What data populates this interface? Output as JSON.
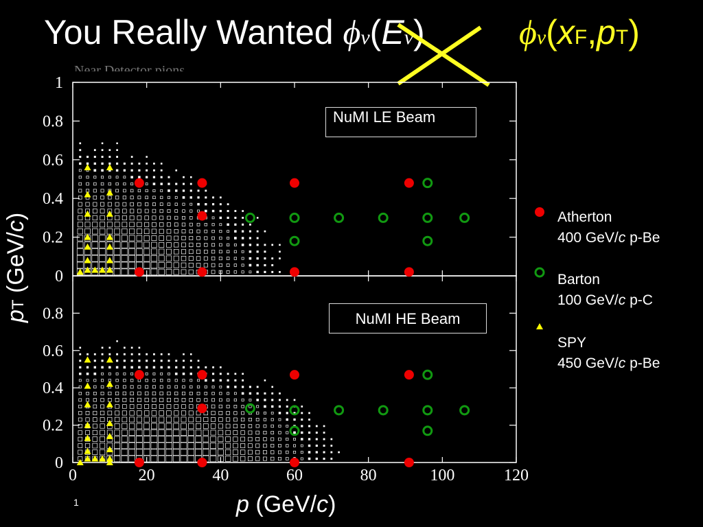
{
  "slide": {
    "title_text": "You Really Wanted ",
    "title_phi": "ϕ",
    "title_nu": "ν",
    "title_open": "(",
    "title_E": "E",
    "title_close": ")",
    "alt_phi": "ϕ",
    "alt_nu": "ν",
    "alt_open": "(",
    "alt_x": "x",
    "alt_F": "F",
    "alt_comma": ",",
    "alt_p": "p",
    "alt_T": "T",
    "alt_close": ")",
    "faint_header": "Near Detector   pions",
    "slide_number": "1",
    "colors": {
      "title": "#ffffff",
      "accent": "#ffff22",
      "atherton": "#ee0000",
      "barton": "#119911",
      "spy": "#ffff00"
    }
  },
  "axes": {
    "ylabel_p": "p",
    "ylabel_T": "T",
    "ylabel_rest": " (GeV/",
    "ylabel_c": "c",
    "ylabel_end": ")",
    "xlabel_p": "p",
    "xlabel_rest": " (GeV/",
    "xlabel_c": "c",
    "xlabel_end": ")"
  },
  "boxes": {
    "le_label": "NuMI  LE Beam",
    "he_label": "NuMI HE Beam"
  },
  "legend": {
    "atherton_name": "Atherton",
    "atherton_energy": "400 GeV/",
    "atherton_c": "c",
    "atherton_target": " p-Be",
    "barton_name": "Barton",
    "barton_energy": "100 GeV/",
    "barton_c": "c",
    "barton_target": " p-C",
    "spy_name": "SPY",
    "spy_energy": "450 GeV/",
    "spy_c": "c",
    "spy_target": " p-Be"
  },
  "chart_data": [
    {
      "type": "scatter",
      "panel": "NuMI LE Beam",
      "xlim": [
        0,
        120
      ],
      "ylim": [
        0,
        1
      ],
      "xticks": [
        0,
        20,
        40,
        60,
        80,
        100,
        120
      ],
      "yticks": [
        "0",
        "0.2",
        "0.4",
        "0.6",
        "0.8",
        "1"
      ],
      "series": [
        {
          "name": "Atherton",
          "marker": "filled-circle",
          "x": [
            18,
            35,
            60,
            91,
            18,
            35,
            60,
            91,
            35
          ],
          "y": [
            0.48,
            0.48,
            0.48,
            0.48,
            0.02,
            0.02,
            0.02,
            0.02,
            0.31
          ]
        },
        {
          "name": "Barton",
          "marker": "open-circle",
          "x": [
            96,
            48,
            60,
            72,
            84,
            96,
            106,
            60,
            96
          ],
          "y": [
            0.48,
            0.3,
            0.3,
            0.3,
            0.3,
            0.3,
            0.3,
            0.18,
            0.18
          ]
        },
        {
          "name": "SPY",
          "marker": "triangle",
          "x": [
            2,
            4,
            4,
            4,
            4,
            4,
            4,
            4,
            6,
            8,
            10,
            10,
            10,
            10,
            10,
            10,
            10,
            10
          ],
          "y": [
            0.02,
            0.56,
            0.42,
            0.32,
            0.2,
            0.15,
            0.08,
            0.03,
            0.03,
            0.03,
            0.56,
            0.43,
            0.32,
            0.2,
            0.15,
            0.08,
            0.03,
            0.03
          ]
        }
      ]
    },
    {
      "type": "scatter",
      "panel": "NuMI HE Beam",
      "xlim": [
        0,
        120
      ],
      "ylim": [
        0,
        1
      ],
      "xticks": [
        0,
        20,
        40,
        60,
        80,
        100,
        120
      ],
      "yticks": [
        "0",
        "0.2",
        "0.4",
        "0.6",
        "0.8"
      ],
      "series": [
        {
          "name": "Atherton",
          "marker": "filled-circle",
          "x": [
            18,
            35,
            60,
            91,
            35,
            18,
            35,
            60,
            91
          ],
          "y": [
            0.47,
            0.47,
            0.47,
            0.47,
            0.29,
            0.0,
            0.0,
            0.0,
            0.0
          ]
        },
        {
          "name": "Barton",
          "marker": "open-circle",
          "x": [
            96,
            48,
            60,
            72,
            84,
            96,
            106,
            60,
            96
          ],
          "y": [
            0.47,
            0.29,
            0.28,
            0.28,
            0.28,
            0.28,
            0.28,
            0.17,
            0.17
          ]
        },
        {
          "name": "SPY",
          "marker": "triangle",
          "x": [
            2,
            4,
            4,
            4,
            4,
            4,
            4,
            4,
            6,
            8,
            10,
            10,
            10,
            10,
            10,
            10,
            10,
            10
          ],
          "y": [
            0.0,
            0.55,
            0.41,
            0.31,
            0.2,
            0.13,
            0.06,
            0.02,
            0.02,
            0.02,
            0.55,
            0.42,
            0.31,
            0.21,
            0.14,
            0.07,
            0.02,
            0.0
          ]
        }
      ]
    }
  ]
}
